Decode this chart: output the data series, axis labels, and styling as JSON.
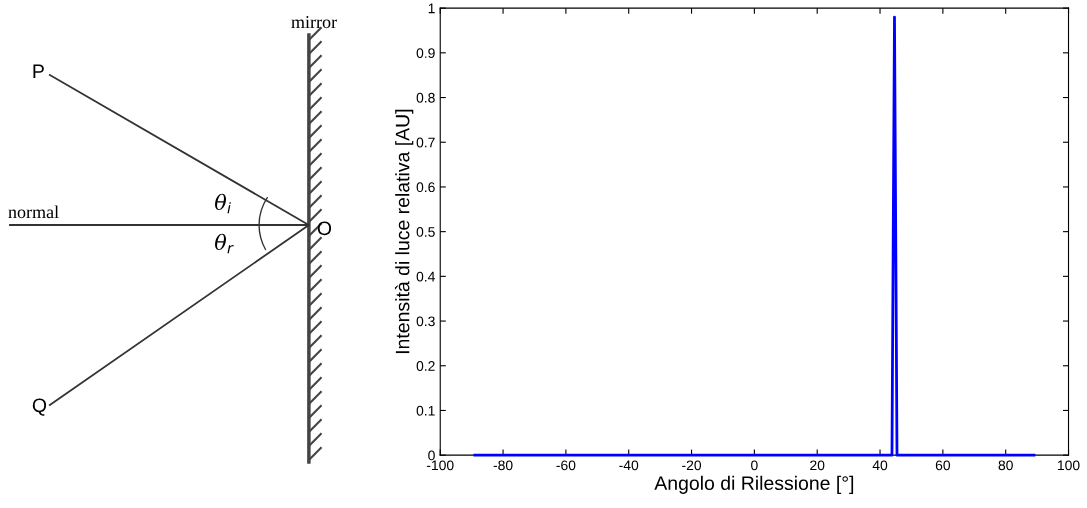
{
  "chart_data": [
    {
      "type": "other",
      "annotations": [
        "mirror",
        "P",
        "normal",
        "O",
        "Q",
        "θ$_{i}$",
        "θ$_{r}$"
      ]
    },
    {
      "type": "line",
      "xlabel": "Angolo di Rilessione [°]",
      "ylabel": "Intensità di luce relativa [AU]",
      "x": [
        -89,
        43.8,
        44.6,
        45.4,
        89
      ],
      "series": [
        {
          "color": "#0000ff",
          "values": [
            0,
            0,
            0.98,
            0,
            0
          ]
        }
      ],
      "xlim": [
        -100,
        100
      ],
      "xticks": [
        -100,
        -80,
        -60,
        -40,
        -20,
        0,
        20,
        40,
        60,
        80,
        100
      ],
      "ylim": [
        0,
        1
      ],
      "yticks": [
        0,
        0.1,
        0.2,
        0.3,
        0.4,
        0.5,
        0.6,
        0.7,
        0.8,
        0.9,
        1
      ],
      "grid": false,
      "marker": "none",
      "line_style": "solid"
    }
  ]
}
